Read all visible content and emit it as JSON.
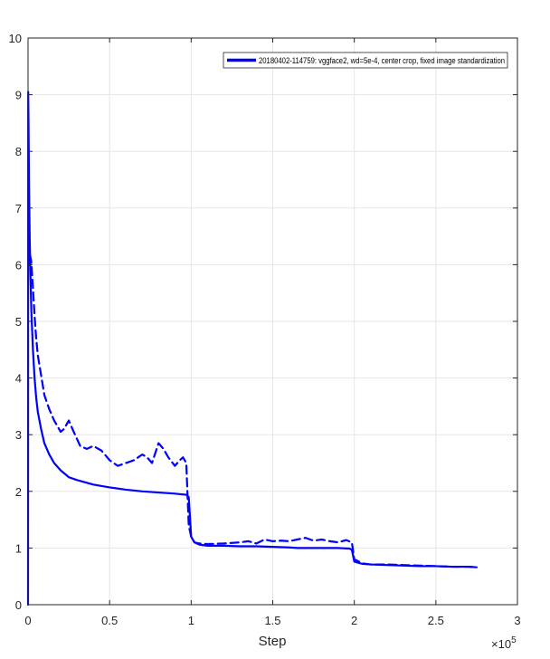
{
  "chart_data": {
    "type": "line",
    "xlabel": "Step",
    "ylabel": "",
    "x_exponent_label": "×10",
    "x_exponent_power": "5",
    "xlim": [
      0,
      3
    ],
    "ylim": [
      0,
      10
    ],
    "x_ticks": [
      "0",
      "0.5",
      "1",
      "1.5",
      "2",
      "2.5",
      "3"
    ],
    "y_ticks": [
      "0",
      "1",
      "2",
      "3",
      "4",
      "5",
      "6",
      "7",
      "8",
      "9",
      "10"
    ],
    "grid": true,
    "legend_position": "top-right",
    "legend_label": "20180402-114759: vggface2, wd=5e-4, center crop, fixed image standardization",
    "series_color": "#0000ff",
    "series": [
      {
        "style": "solid",
        "x": [
          0.0,
          0.001,
          0.003,
          0.006,
          0.01,
          0.015,
          0.02,
          0.03,
          0.04,
          0.05,
          0.06,
          0.08,
          0.1,
          0.13,
          0.16,
          0.2,
          0.25,
          0.3,
          0.35,
          0.4,
          0.5,
          0.6,
          0.7,
          0.8,
          0.9,
          0.97,
          0.985,
          1.0,
          1.02,
          1.05,
          1.1,
          1.2,
          1.3,
          1.4,
          1.5,
          1.6,
          1.65,
          1.7,
          1.8,
          1.9,
          1.97,
          1.985,
          2.0,
          2.05,
          2.1,
          2.2,
          2.3,
          2.4,
          2.5,
          2.6,
          2.7,
          2.75
        ],
        "y": [
          0.0,
          9.05,
          8.5,
          7.4,
          6.5,
          5.8,
          5.2,
          4.5,
          4.0,
          3.65,
          3.4,
          3.1,
          2.85,
          2.65,
          2.5,
          2.37,
          2.25,
          2.2,
          2.16,
          2.12,
          2.07,
          2.03,
          2.0,
          1.98,
          1.96,
          1.94,
          1.9,
          1.2,
          1.1,
          1.06,
          1.04,
          1.04,
          1.03,
          1.03,
          1.02,
          1.01,
          1.0,
          1.0,
          1.0,
          1.0,
          0.99,
          0.97,
          0.76,
          0.72,
          0.71,
          0.7,
          0.69,
          0.68,
          0.68,
          0.67,
          0.67,
          0.66
        ]
      },
      {
        "style": "dashed",
        "x": [
          0.002,
          0.01,
          0.02,
          0.03,
          0.04,
          0.05,
          0.06,
          0.08,
          0.1,
          0.13,
          0.16,
          0.2,
          0.22,
          0.25,
          0.28,
          0.32,
          0.36,
          0.4,
          0.45,
          0.5,
          0.55,
          0.6,
          0.65,
          0.7,
          0.73,
          0.76,
          0.8,
          0.83,
          0.86,
          0.9,
          0.93,
          0.95,
          0.97,
          0.985,
          1.0,
          1.02,
          1.05,
          1.1,
          1.2,
          1.3,
          1.35,
          1.4,
          1.45,
          1.5,
          1.55,
          1.6,
          1.65,
          1.7,
          1.75,
          1.8,
          1.85,
          1.9,
          1.95,
          1.985,
          2.0,
          2.05,
          2.1,
          2.2,
          2.3,
          2.4,
          2.5,
          2.6,
          2.7,
          2.75
        ],
        "y": [
          6.0,
          6.2,
          6.05,
          5.6,
          5.1,
          4.7,
          4.4,
          4.05,
          3.7,
          3.45,
          3.25,
          3.05,
          3.1,
          3.25,
          3.05,
          2.8,
          2.75,
          2.8,
          2.72,
          2.55,
          2.45,
          2.5,
          2.55,
          2.65,
          2.6,
          2.5,
          2.85,
          2.75,
          2.6,
          2.45,
          2.55,
          2.6,
          2.5,
          1.4,
          1.2,
          1.1,
          1.08,
          1.07,
          1.08,
          1.1,
          1.12,
          1.08,
          1.15,
          1.12,
          1.13,
          1.12,
          1.15,
          1.18,
          1.13,
          1.15,
          1.12,
          1.1,
          1.14,
          1.1,
          0.8,
          0.73,
          0.71,
          0.71,
          0.7,
          0.69,
          0.68,
          0.67,
          0.67,
          0.66
        ]
      }
    ]
  }
}
